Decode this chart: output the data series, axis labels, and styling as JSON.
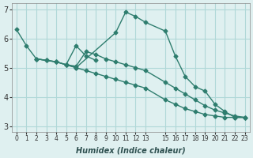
{
  "background_color": "#dff0f0",
  "grid_color": "#b0d8d8",
  "line_color": "#2e7d6e",
  "xlabel": "Humidex (Indice chaleur)",
  "ylabel": "",
  "xlim": [
    -0.5,
    23.5
  ],
  "ylim": [
    2.8,
    7.2
  ],
  "yticks": [
    3,
    4,
    5,
    6,
    7
  ],
  "xticks": [
    0,
    1,
    2,
    3,
    4,
    5,
    6,
    7,
    8,
    9,
    10,
    11,
    12,
    13,
    15,
    16,
    17,
    18,
    19,
    20,
    21,
    22,
    23
  ],
  "xtick_labels": [
    "0",
    "1",
    "2",
    "3",
    "4",
    "5",
    "6",
    "7",
    "8",
    "9",
    "10",
    "11",
    "12",
    "13",
    "15",
    "16",
    "17",
    "18",
    "19",
    "20",
    "21",
    "22",
    "23"
  ],
  "lines": [
    {
      "x": [
        0,
        1,
        2,
        3,
        4,
        5,
        6,
        10,
        11,
        12,
        13,
        15,
        16,
        17,
        18,
        19,
        20,
        21,
        22,
        23
      ],
      "y": [
        6.3,
        5.75,
        5.3,
        5.25,
        5.2,
        5.1,
        5.0,
        6.2,
        6.9,
        6.75,
        6.55,
        6.25,
        5.4,
        4.7,
        4.35,
        4.2,
        3.75,
        3.5,
        3.3,
        3.3
      ]
    },
    {
      "x": [
        2,
        3,
        4,
        5,
        6,
        7,
        8,
        9,
        10,
        11,
        12,
        13,
        15,
        16,
        17,
        18,
        19,
        20,
        21,
        22,
        23
      ],
      "y": [
        5.3,
        5.25,
        5.2,
        5.1,
        5.05,
        5.55,
        5.45,
        5.3,
        5.2,
        5.1,
        5.0,
        4.9,
        4.5,
        4.3,
        4.1,
        3.9,
        3.7,
        3.55,
        3.45,
        3.35,
        3.3
      ]
    },
    {
      "x": [
        2,
        3,
        4,
        5,
        6,
        7,
        8,
        9,
        10,
        11,
        12,
        13,
        15,
        16,
        17,
        18,
        19,
        20,
        21,
        22,
        23
      ],
      "y": [
        5.3,
        5.25,
        5.2,
        5.1,
        5.0,
        4.9,
        4.8,
        4.7,
        4.6,
        4.5,
        4.4,
        4.3,
        3.9,
        3.75,
        3.6,
        3.5,
        3.4,
        3.35,
        3.3,
        3.3,
        3.3
      ]
    },
    {
      "x": [
        5,
        6,
        7,
        8
      ],
      "y": [
        5.1,
        5.75,
        5.4,
        5.25
      ]
    }
  ]
}
